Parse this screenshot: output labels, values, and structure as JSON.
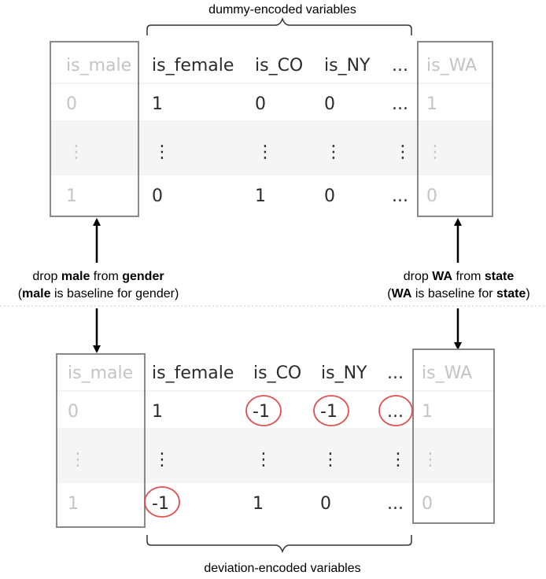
{
  "labels": {
    "top": "dummy-encoded variables",
    "bottom": "deviation-encoded variables",
    "left_line1_pre": "drop ",
    "left_line1_b1": "male",
    "left_line1_mid": " from ",
    "left_line1_b2": "gender",
    "left_line2_open": "(",
    "left_line2_b": "male",
    "left_line2_rest": " is baseline for gender)",
    "right_line1_pre": "drop ",
    "right_line1_b1": "WA",
    "right_line1_mid": " from ",
    "right_line1_b2": "state",
    "right_line2_open": "(",
    "right_line2_b": "WA",
    "right_line2_mid": " is baseline for ",
    "right_line2_b2": "state",
    "right_line2_close": ")"
  },
  "top_table": {
    "headers": [
      "is_male",
      "is_female",
      "is_CO",
      "is_NY",
      "...",
      "is_WA"
    ],
    "rows": [
      [
        "0",
        "1",
        "0",
        "0",
        "...",
        "1"
      ],
      [
        "⋮",
        "⋮",
        "⋮",
        "⋮",
        "⋮",
        "⋮"
      ],
      [
        "1",
        "0",
        "1",
        "0",
        "...",
        "0"
      ]
    ]
  },
  "bottom_table": {
    "headers": [
      "is_male",
      "is_female",
      "is_CO",
      "is_NY",
      "...",
      "is_WA"
    ],
    "rows": [
      [
        "0",
        "1",
        "-1",
        "-1",
        "...",
        "1"
      ],
      [
        "⋮",
        "⋮",
        "⋮",
        "⋮",
        "⋮",
        "⋮"
      ],
      [
        "1",
        "-1",
        "1",
        "0",
        "...",
        "0"
      ]
    ]
  },
  "colors": {
    "highlight_circle": "#e05050",
    "dropped_box_border": "#888888",
    "dropped_box_fill": "#fafafa",
    "stripe": "#f5f5f5",
    "dim_text": "#c4c4c4"
  }
}
